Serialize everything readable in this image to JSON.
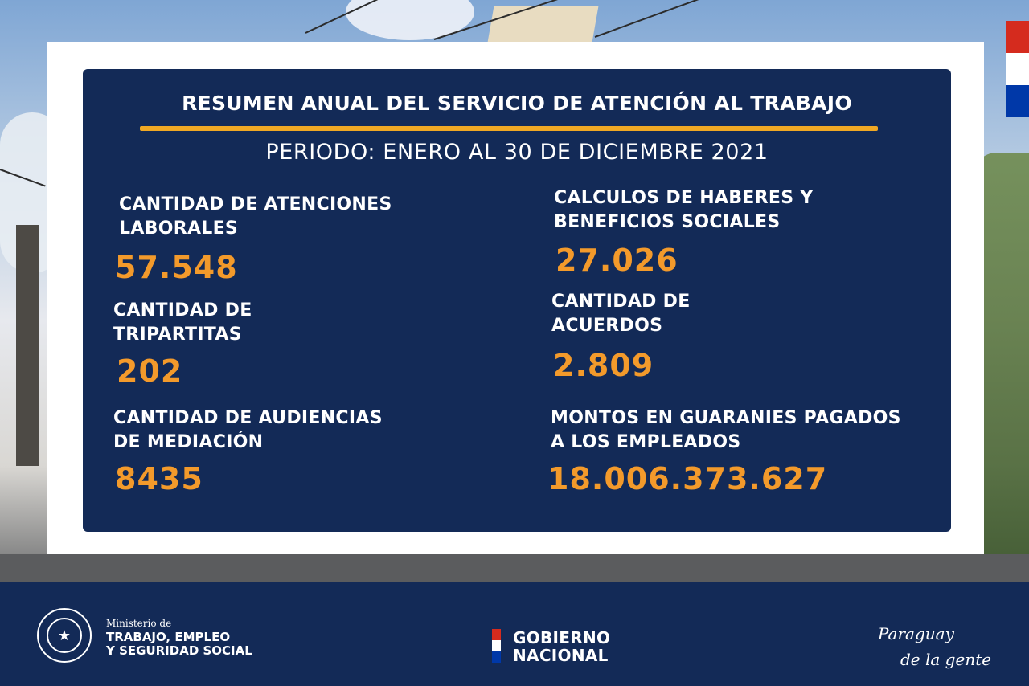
{
  "header": {
    "title": "RESUMEN ANUAL DEL SERVICIO DE ATENCIÓN AL TRABAJO",
    "period": "PERIODO: ENERO AL 30 DE DICIEMBRE 2021"
  },
  "stats": [
    {
      "label_1": "CANTIDAD DE ATENCIONES",
      "label_2": "LABORALES",
      "value": "57.548"
    },
    {
      "label_1": "CALCULOS DE HABERES Y",
      "label_2": "BENEFICIOS SOCIALES",
      "value": "27.026"
    },
    {
      "label_1": "CANTIDAD DE",
      "label_2": "TRIPARTITAS",
      "value": "202"
    },
    {
      "label_1": "CANTIDAD DE",
      "label_2": "ACUERDOS",
      "value": "2.809"
    },
    {
      "label_1": "CANTIDAD DE AUDIENCIAS",
      "label_2": "DE MEDIACIÓN",
      "value": "8435"
    },
    {
      "label_1": "MONTOS EN GUARANIES PAGADOS",
      "label_2": "A LOS EMPLEADOS",
      "value": "18.006.373.627"
    }
  ],
  "footer": {
    "ministry_small": "Ministerio de",
    "ministry_line_1": "TRABAJO, EMPLEO",
    "ministry_line_2": "Y SEGURIDAD SOCIAL",
    "gobierno_line_1": "GOBIERNO",
    "gobierno_line_2": "NACIONAL",
    "slogan_line_1": "Paraguay",
    "slogan_line_2": "de la gente",
    "seal_icon": "national-seal-icon"
  },
  "colors": {
    "panel": "#132a57",
    "accent": "#f39a2b",
    "rule": "#f0a824",
    "flag_red": "#d52b1e",
    "flag_white": "#ffffff",
    "flag_blue": "#0038a8"
  }
}
